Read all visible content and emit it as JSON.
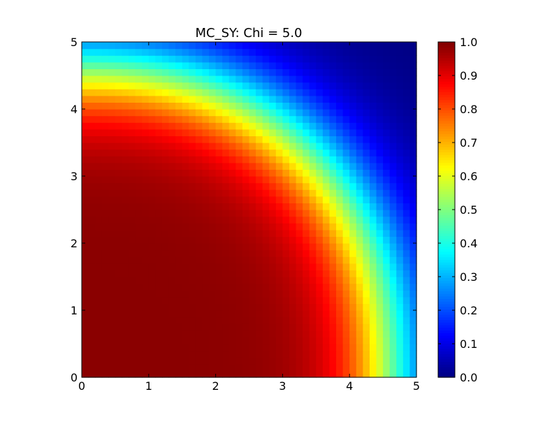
{
  "chart_data": {
    "type": "heatmap",
    "title": "MC_SY: Chi = 5.0",
    "xlabel": "",
    "ylabel": "",
    "xlim": [
      0,
      5
    ],
    "ylim": [
      0,
      5
    ],
    "x_ticks": [
      "0",
      "1",
      "2",
      "3",
      "4",
      "5"
    ],
    "y_ticks": [
      "0",
      "1",
      "2",
      "3",
      "4",
      "5"
    ],
    "grid": false,
    "colormap": "jet",
    "colorbar": {
      "range": [
        0.0,
        1.0
      ],
      "ticks": [
        "0.0",
        "0.1",
        "0.2",
        "0.3",
        "0.4",
        "0.5",
        "0.6",
        "0.7",
        "0.8",
        "0.9",
        "1.0"
      ]
    },
    "grid_size": [
      50,
      50
    ],
    "field": {
      "description_of_values": "approximate logistic falloff of value with radial distance from origin (0,0)",
      "value_at_origin": 0.99,
      "value_near_top_right": 0.0,
      "half_value_radius": 4.6,
      "transition_width": 0.42,
      "radial_shape_exponent": 2.2
    }
  }
}
